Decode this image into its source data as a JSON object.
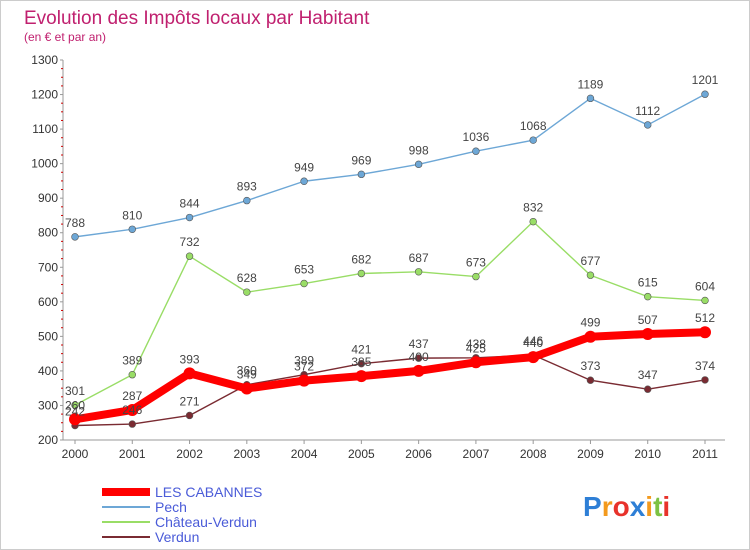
{
  "chart_data": {
    "type": "line",
    "title": "Evolution des Impôts locaux par Habitant",
    "subtitle": "(en € et par an)",
    "x": [
      "2000",
      "2001",
      "2002",
      "2003",
      "2004",
      "2005",
      "2006",
      "2007",
      "2008",
      "2009",
      "2010",
      "2011"
    ],
    "ylim": [
      200,
      1300
    ],
    "yticks": [
      200,
      300,
      400,
      500,
      600,
      700,
      800,
      900,
      1000,
      1100,
      1200,
      1300
    ],
    "grid": false,
    "legend_position": "bottom-left",
    "series": [
      {
        "name": "LES CABANNES",
        "color": "#ff0000",
        "values": [
          260,
          287,
          393,
          349,
          372,
          385,
          400,
          425,
          440,
          499,
          507,
          512
        ]
      },
      {
        "name": "Pech",
        "color": "#6da7d6",
        "values": [
          788,
          810,
          844,
          893,
          949,
          969,
          998,
          1036,
          1068,
          1189,
          1112,
          1201
        ]
      },
      {
        "name": "Château-Verdun",
        "color": "#99dd66",
        "values": [
          301,
          389,
          732,
          628,
          653,
          682,
          687,
          673,
          832,
          677,
          615,
          604
        ]
      },
      {
        "name": "Verdun",
        "color": "#7a2b32",
        "values": [
          242,
          246,
          271,
          360,
          389,
          421,
          437,
          438,
          446,
          373,
          347,
          374
        ]
      }
    ]
  },
  "logo": {
    "text": "Proxiti",
    "letters": [
      "P",
      "r",
      "o",
      "x",
      "i",
      "t",
      "i"
    ],
    "colors": [
      "#2e7fd6",
      "#f39a1e",
      "#e8322b",
      "#2e7fd6",
      "#f39a1e",
      "#7cc243",
      "#e8322b"
    ]
  }
}
